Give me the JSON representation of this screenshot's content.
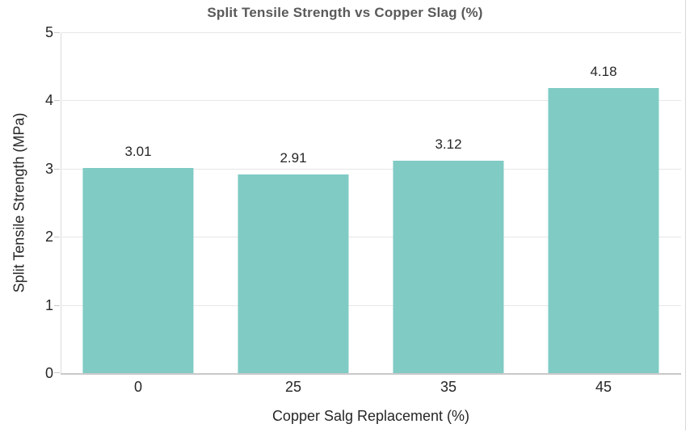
{
  "chart_data": {
    "type": "bar",
    "title": "Split Tensile Strength vs Copper Slag (%)",
    "xlabel": "Copper Salg Replacement (%)",
    "ylabel": "Split Tensile Strength (MPa)",
    "categories": [
      "0",
      "25",
      "35",
      "45"
    ],
    "values": [
      3.01,
      2.91,
      3.12,
      4.18
    ],
    "value_labels": [
      "3.01",
      "2.91",
      "3.12",
      "4.18"
    ],
    "ylim": [
      0,
      5
    ],
    "yticks": [
      0,
      1,
      2,
      3,
      4,
      5
    ],
    "grid": "horizontal-only",
    "legend": "none",
    "colors": {
      "bar": "#80cbc4",
      "title": "#595959",
      "text": "#262626",
      "grid": "#e7e7e7",
      "axis": "#c9c9c9",
      "spine": "#dcdcdc",
      "frame": "#d8d8d8",
      "background": "#ffffff"
    }
  }
}
